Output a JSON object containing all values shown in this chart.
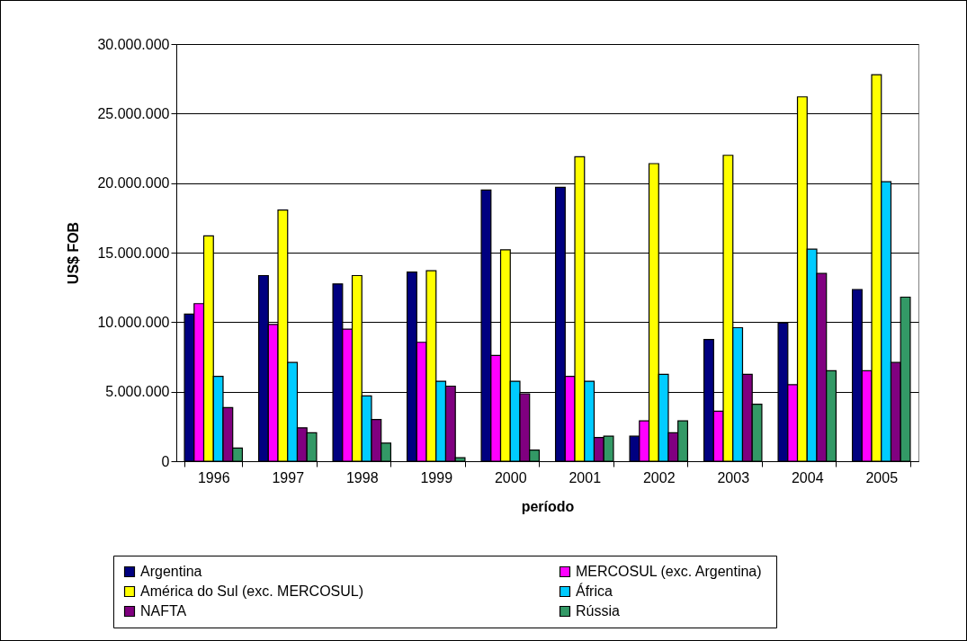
{
  "chart_data": {
    "type": "bar",
    "xlabel": "período",
    "ylabel": "US$ FOB",
    "categories": [
      "1996",
      "1997",
      "1998",
      "1999",
      "2000",
      "2001",
      "2002",
      "2003",
      "2004",
      "2005"
    ],
    "series": [
      {
        "name": "Argentina",
        "color": "#000080",
        "values": [
          10580000,
          13350000,
          12750000,
          13600000,
          19500000,
          19700000,
          1800000,
          8750000,
          9950000,
          12350000
        ]
      },
      {
        "name": "MERCOSUL  (exc. Argentina)",
        "color": "#ff00ff",
        "values": [
          11330000,
          9830000,
          9500000,
          8550000,
          7600000,
          6100000,
          2900000,
          3600000,
          5500000,
          6500000
        ]
      },
      {
        "name": "América do Sul (exc. MERCOSUL)",
        "color": "#ffff00",
        "values": [
          16200000,
          18060000,
          13350000,
          13700000,
          15200000,
          21900000,
          21400000,
          22000000,
          26200000,
          27800000
        ]
      },
      {
        "name": "África",
        "color": "#00ccff",
        "values": [
          6100000,
          7100000,
          4700000,
          5750000,
          5750000,
          5750000,
          6250000,
          9600000,
          15250000,
          20100000
        ]
      },
      {
        "name": "NAFTA",
        "color": "#800080",
        "values": [
          3850000,
          2400000,
          3000000,
          5400000,
          4850000,
          1700000,
          2050000,
          6250000,
          13500000,
          7100000
        ]
      },
      {
        "name": "Rússia",
        "color": "#339966",
        "values": [
          950000,
          2050000,
          1300000,
          250000,
          800000,
          1800000,
          2900000,
          4100000,
          6500000,
          11800000
        ]
      }
    ],
    "ylim": [
      0,
      30000000
    ],
    "yticks": [
      0,
      {
        "value": 5000000,
        "label": "5.000.000"
      },
      {
        "value": 10000000,
        "label": "10.000.000"
      },
      {
        "value": 15000000,
        "label": "15.000.000"
      },
      {
        "value": 20000000,
        "label": "20.000.000"
      },
      {
        "value": 25000000,
        "label": "25.000.000"
      },
      {
        "value": 30000000,
        "label": "30.000.000"
      }
    ],
    "grid": "y",
    "legend": "bottom"
  }
}
